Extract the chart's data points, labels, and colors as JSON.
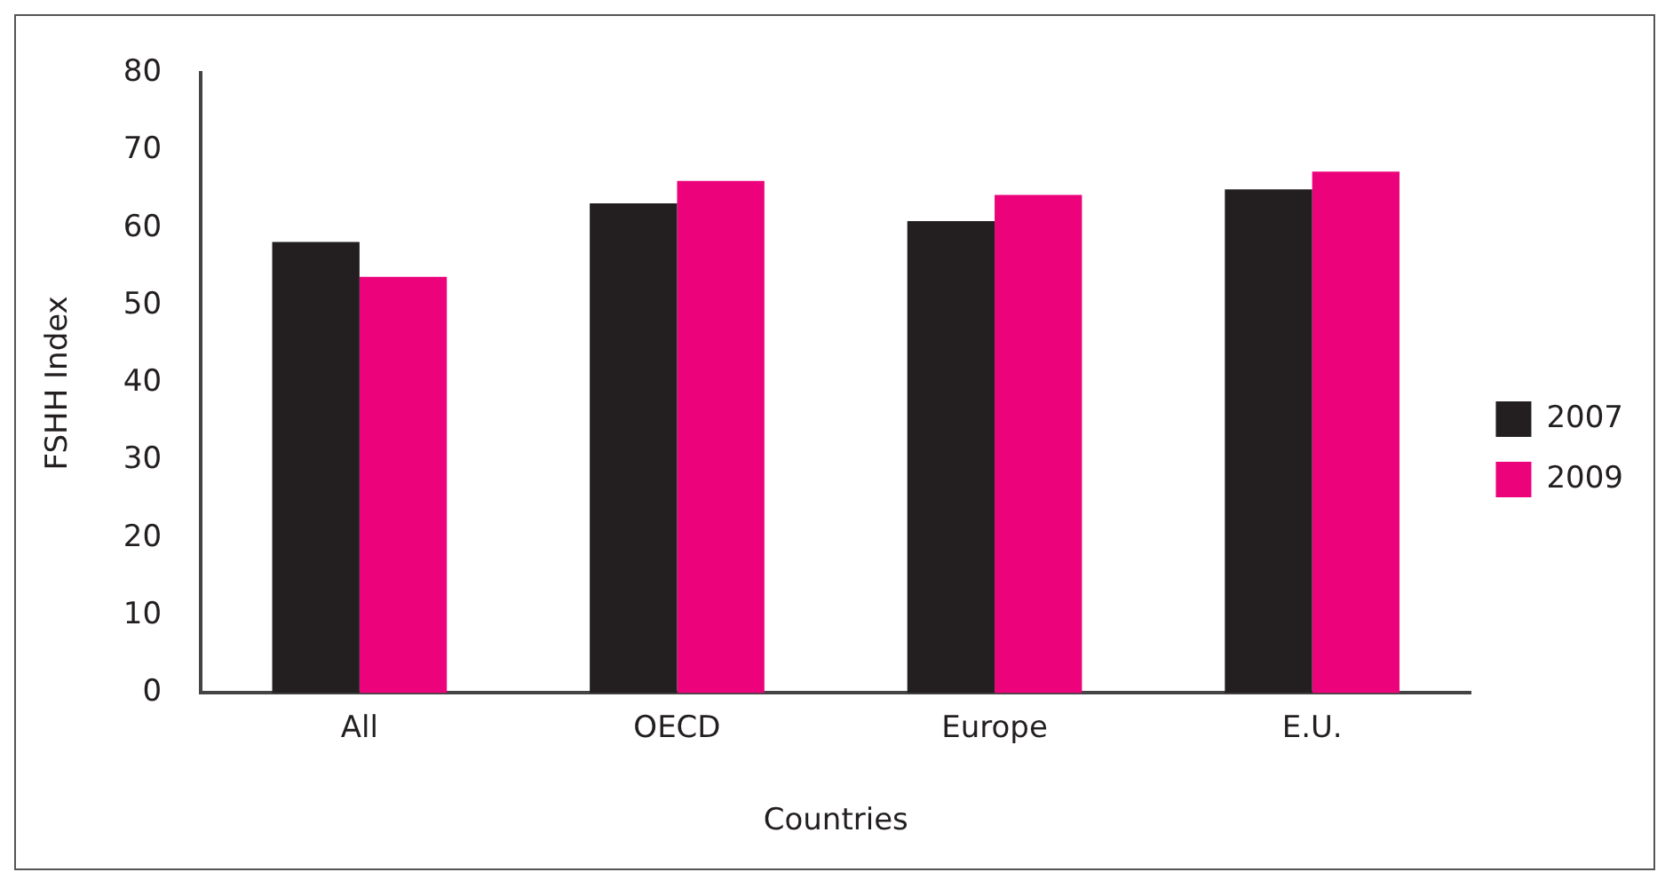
{
  "chart_data": {
    "type": "bar",
    "xlabel": "Countries",
    "ylabel": "FSHH Index",
    "categories": [
      "All",
      "OECD",
      "Europe",
      "E.U."
    ],
    "series": [
      {
        "name": "2007",
        "color": "#231f20",
        "values": [
          58.2,
          63.2,
          60.9,
          65.0
        ]
      },
      {
        "name": "2009",
        "color": "#ec037b",
        "values": [
          53.7,
          66.1,
          64.3,
          67.3
        ]
      }
    ],
    "ylim": [
      0,
      80
    ],
    "yticks": [
      0,
      10,
      20,
      30,
      40,
      50,
      60,
      70,
      80
    ],
    "grid": false,
    "legend": "right"
  }
}
